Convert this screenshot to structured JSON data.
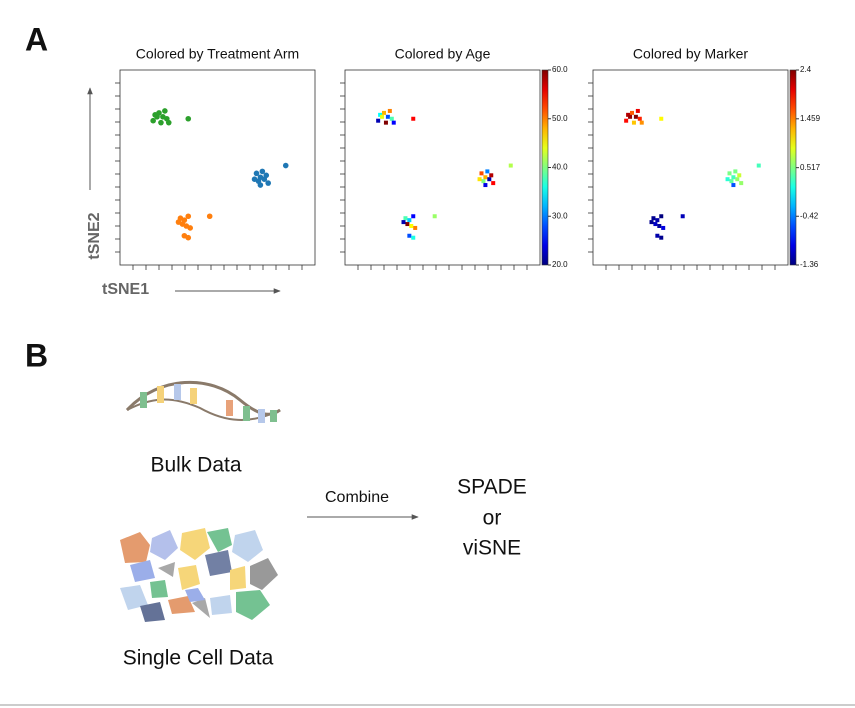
{
  "panel_a": {
    "label": "A"
  },
  "chart_data": [
    {
      "type": "scatter",
      "title": "Colored by Treatment Arm",
      "xlabel": "tSNE1",
      "ylabel": "tSNE2",
      "xlim": [
        0,
        100
      ],
      "ylim": [
        0,
        100
      ],
      "series": [
        {
          "color": "#2ca02c",
          "x": [
            18,
            20,
            22,
            17,
            21,
            24,
            19,
            23,
            25,
            35
          ],
          "y": [
            77,
            78,
            76,
            74,
            73,
            75,
            76,
            79,
            73,
            75
          ]
        },
        {
          "color": "#1f77b4",
          "x": [
            70,
            72,
            74,
            71,
            75,
            73,
            69,
            76,
            72,
            85
          ],
          "y": [
            47,
            45,
            44,
            43,
            46,
            48,
            44,
            42,
            41,
            51
          ]
        },
        {
          "color": "#ff7f0e",
          "x": [
            31,
            33,
            35,
            32,
            34,
            30,
            36,
            33,
            35,
            46
          ],
          "y": [
            24,
            23,
            25,
            21,
            20,
            22,
            19,
            15,
            14,
            25
          ]
        }
      ]
    },
    {
      "type": "scatter",
      "title": "Colored by Age",
      "xlim": [
        0,
        100
      ],
      "ylim": [
        0,
        100
      ],
      "colormap": "jet",
      "x": [
        18,
        20,
        22,
        17,
        21,
        24,
        19,
        23,
        25,
        35,
        70,
        72,
        74,
        71,
        75,
        73,
        69,
        76,
        72,
        85,
        31,
        33,
        35,
        32,
        34,
        30,
        36,
        33,
        35,
        46
      ],
      "y": [
        77,
        78,
        76,
        74,
        73,
        75,
        76,
        79,
        73,
        75,
        47,
        45,
        44,
        43,
        46,
        48,
        44,
        42,
        41,
        51,
        24,
        23,
        25,
        21,
        20,
        22,
        19,
        15,
        14,
        25
      ],
      "c": [
        35,
        48,
        28,
        22,
        60,
        38,
        44,
        50,
        25,
        55,
        52,
        48,
        22,
        40,
        58,
        30,
        46,
        55,
        24,
        42,
        38,
        33,
        25,
        60,
        45,
        22,
        50,
        28,
        36,
        41
      ],
      "clim": [
        20,
        60
      ],
      "cticks": [
        {
          "value": 20,
          "label": "20.0"
        },
        {
          "value": 30,
          "label": "30.0"
        },
        {
          "value": 40,
          "label": "40.0"
        },
        {
          "value": 50,
          "label": "50.0"
        },
        {
          "value": 60,
          "label": "60.0"
        }
      ]
    },
    {
      "type": "scatter",
      "title": "Colored by Marker",
      "xlim": [
        0,
        100
      ],
      "ylim": [
        0,
        100
      ],
      "colormap": "jet",
      "x": [
        18,
        20,
        22,
        17,
        21,
        24,
        19,
        23,
        25,
        35,
        70,
        72,
        74,
        71,
        75,
        73,
        69,
        76,
        72,
        85,
        31,
        33,
        35,
        32,
        34,
        30,
        36,
        33,
        35,
        46
      ],
      "y": [
        77,
        78,
        76,
        74,
        73,
        75,
        76,
        79,
        73,
        75,
        47,
        45,
        44,
        43,
        46,
        48,
        44,
        42,
        41,
        51,
        24,
        23,
        25,
        21,
        20,
        22,
        19,
        15,
        14,
        25
      ],
      "c": [
        2.2,
        1.6,
        2.4,
        1.9,
        1.2,
        1.8,
        2.3,
        2.0,
        1.4,
        1.0,
        0.5,
        0.3,
        0.6,
        0.4,
        0.8,
        0.5,
        0.2,
        0.6,
        -0.6,
        0.3,
        -1.3,
        -1.2,
        -1.36,
        -1.1,
        -1.25,
        -1.3,
        -1.0,
        -1.2,
        -1.3,
        -1.15
      ],
      "clim": [
        -1.36,
        2.4
      ],
      "cticks": [
        -1.36,
        -0.42,
        0.517,
        1.459,
        2.4
      ]
    }
  ],
  "panel_b": {
    "label": "B",
    "bulk": "Bulk Data",
    "single": "Single Cell Data",
    "arrow_label": "Combine",
    "result": [
      "SPADE",
      "or",
      "viSNE"
    ]
  }
}
